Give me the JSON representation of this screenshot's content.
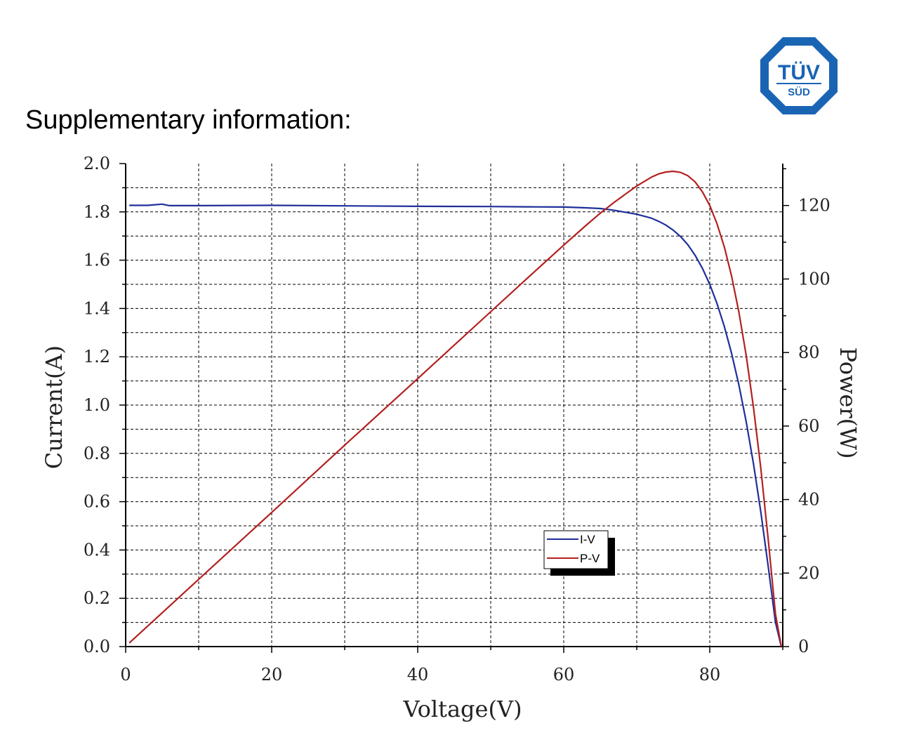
{
  "header": {
    "heading": "Supplementary information:"
  },
  "logo": {
    "line1": "TÜV",
    "line2": "SÜD",
    "color": "#1a64b4"
  },
  "chart_data": {
    "type": "line",
    "title": "",
    "xlabel": "Voltage(V)",
    "ylabel": "Current(A)",
    "y2label": "Power(W)",
    "xlim": [
      0,
      90
    ],
    "ylim": [
      0,
      2.0
    ],
    "y2lim": [
      0,
      131.4
    ],
    "x_ticks": [
      "0",
      "20",
      "40",
      "60",
      "80"
    ],
    "y_ticks": [
      "0.0",
      "0.2",
      "0.4",
      "0.6",
      "0.8",
      "1.0",
      "1.2",
      "1.4",
      "1.6",
      "1.8",
      "2.0"
    ],
    "y2_ticks": [
      "0",
      "20",
      "40",
      "60",
      "80",
      "100",
      "120"
    ],
    "grid": true,
    "legend_position": "lower-center",
    "series": [
      {
        "name": "I-V",
        "axis": "left",
        "color": "#1f2f9a",
        "x": [
          0.5,
          3,
          5,
          6,
          10,
          20,
          30,
          40,
          50,
          55,
          60,
          63,
          65,
          67,
          70,
          72,
          73,
          74,
          75,
          76,
          77,
          78,
          79,
          80,
          81,
          82,
          83,
          84,
          85,
          86,
          87,
          88,
          89,
          89.8
        ],
        "y": [
          1.827,
          1.827,
          1.832,
          1.826,
          1.826,
          1.827,
          1.825,
          1.823,
          1.822,
          1.821,
          1.82,
          1.817,
          1.814,
          1.806,
          1.79,
          1.774,
          1.761,
          1.745,
          1.724,
          1.698,
          1.664,
          1.62,
          1.566,
          1.5,
          1.42,
          1.325,
          1.213,
          1.082,
          0.93,
          0.755,
          0.556,
          0.333,
          0.1,
          0.0
        ]
      },
      {
        "name": "P-V",
        "axis": "right",
        "color": "#b42020",
        "x": [
          0.5,
          10,
          20,
          30,
          40,
          50,
          55,
          60,
          63,
          65,
          67,
          70,
          72,
          73,
          74,
          75,
          76,
          77,
          78,
          79,
          80,
          81,
          82,
          83,
          84,
          85,
          86,
          87,
          88,
          89,
          89.8
        ],
        "y": [
          1.0,
          18.3,
          36.5,
          54.8,
          72.9,
          91.1,
          100.2,
          109.2,
          114.5,
          117.9,
          121.0,
          125.3,
          127.7,
          128.6,
          129.1,
          129.3,
          129.0,
          128.1,
          126.4,
          123.7,
          120.0,
          115.0,
          108.7,
          100.7,
          90.9,
          79.1,
          64.9,
          48.4,
          29.3,
          8.9,
          0.0
        ]
      }
    ]
  }
}
